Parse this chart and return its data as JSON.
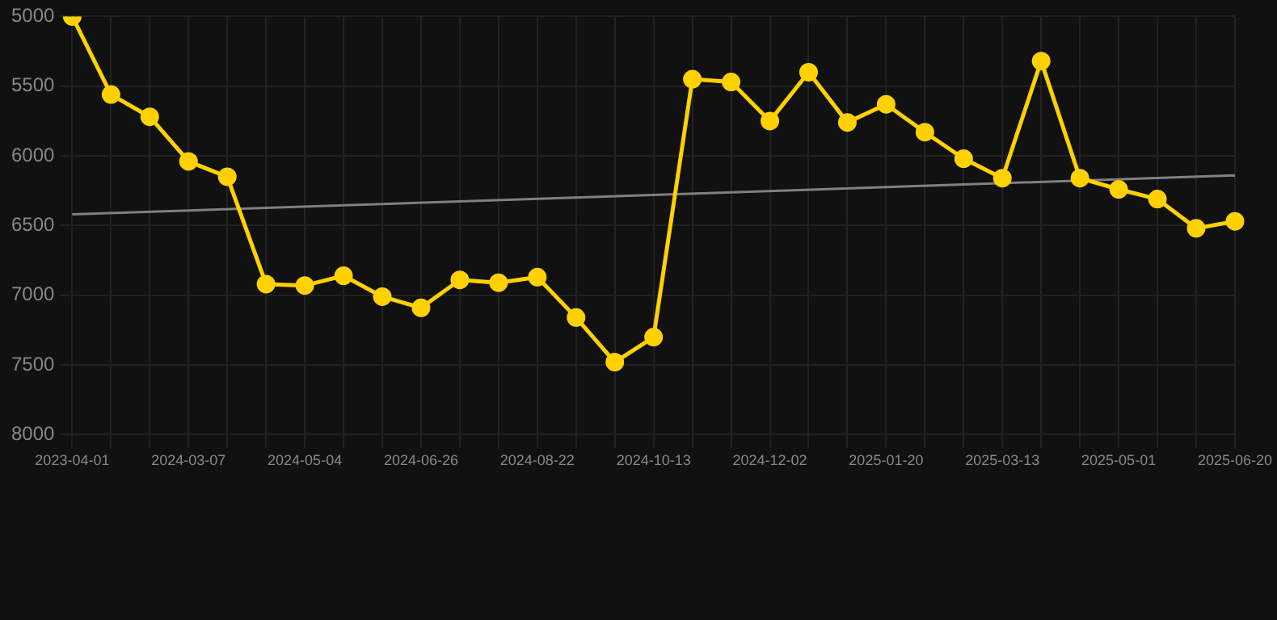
{
  "chart_data": {
    "type": "line",
    "categories": [
      "2023-04-01",
      null,
      null,
      "2024-03-07",
      null,
      null,
      "2024-05-04",
      null,
      null,
      "2024-06-26",
      null,
      null,
      "2024-08-22",
      null,
      null,
      "2024-10-13",
      null,
      null,
      "2024-12-02",
      null,
      null,
      "2025-01-20",
      null,
      null,
      "2025-03-13",
      null,
      null,
      "2025-05-01",
      null,
      null,
      "2025-06-20"
    ],
    "series": [
      {
        "color": "#ffd100",
        "marker": "circle",
        "values": [
          5000,
          5560,
          5720,
          6040,
          6150,
          6920,
          6930,
          6860,
          7010,
          7090,
          6890,
          6910,
          6870,
          7160,
          7480,
          7300,
          5450,
          5470,
          5750,
          5400,
          5760,
          5630,
          5830,
          6020,
          6160,
          5320,
          6160,
          6240,
          6310,
          6520,
          6470
        ]
      },
      {
        "color": "#808080",
        "marker": "none",
        "values": [
          6420,
          null,
          null,
          null,
          null,
          null,
          null,
          null,
          null,
          null,
          null,
          null,
          null,
          null,
          null,
          null,
          null,
          null,
          null,
          null,
          null,
          null,
          null,
          null,
          null,
          null,
          null,
          null,
          null,
          null,
          6140
        ]
      }
    ],
    "ylim": [
      8000,
      5000
    ],
    "yticks": [
      5000,
      5500,
      6000,
      6500,
      7000,
      7500,
      8000
    ],
    "grid": true,
    "legend": false
  }
}
